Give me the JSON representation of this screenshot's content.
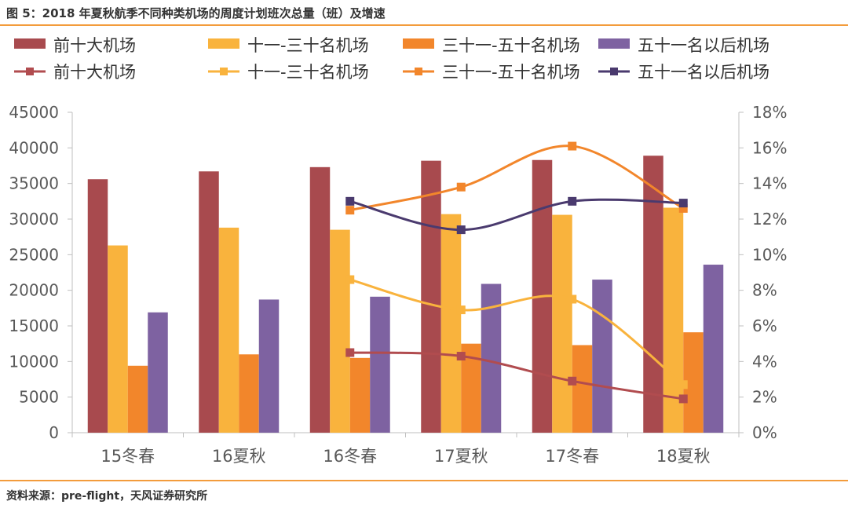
{
  "figure": {
    "title": "图 5：2018 年夏秋航季不同种类机场的周度计划班次总量（班）及增速",
    "source": "资料来源：pre-flight，天风证券研究所"
  },
  "colors": {
    "accent": "#F39C3C",
    "series": [
      "#A84A4E",
      "#F9B33D",
      "#F2862B",
      "#7E62A1"
    ],
    "lines": [
      "#B14C4F",
      "#F9B33D",
      "#F2862B",
      "#4A3A6E"
    ]
  },
  "chart_data": {
    "type": "bar",
    "title": "",
    "categories": [
      "15冬春",
      "16夏秋",
      "16冬春",
      "17夏秋",
      "17冬春",
      "18夏秋"
    ],
    "ylim": [
      0,
      45000
    ],
    "y_ticks": [
      "0",
      "5000",
      "10000",
      "15000",
      "20000",
      "25000",
      "30000",
      "35000",
      "40000",
      "45000"
    ],
    "y2lim": [
      0,
      0.18
    ],
    "y2_ticks": [
      "0%",
      "2%",
      "4%",
      "6%",
      "8%",
      "10%",
      "12%",
      "14%",
      "16%",
      "18%"
    ],
    "legend_position": "top",
    "series": [
      {
        "name": "前十大机场",
        "type": "bar",
        "axis": "left",
        "values": [
          35600,
          36700,
          37300,
          38200,
          38300,
          38900
        ]
      },
      {
        "name": "十一-三十名机场",
        "type": "bar",
        "axis": "left",
        "values": [
          26300,
          28800,
          28500,
          30700,
          30600,
          31600
        ]
      },
      {
        "name": "三十一-五十名机场",
        "type": "bar",
        "axis": "left",
        "values": [
          9400,
          11000,
          10500,
          12500,
          12300,
          14100
        ]
      },
      {
        "name": "五十一名以后机场",
        "type": "bar",
        "axis": "left",
        "values": [
          16900,
          18700,
          19100,
          20900,
          21500,
          23600
        ]
      },
      {
        "name": "前十大机场",
        "type": "line",
        "axis": "right",
        "values": [
          null,
          null,
          0.045,
          0.043,
          0.029,
          0.019
        ]
      },
      {
        "name": "十一-三十名机场",
        "type": "line",
        "axis": "right",
        "values": [
          null,
          null,
          0.086,
          0.069,
          0.075,
          0.027
        ]
      },
      {
        "name": "三十一-五十名机场",
        "type": "line",
        "axis": "right",
        "values": [
          null,
          null,
          0.125,
          0.138,
          0.161,
          0.126
        ]
      },
      {
        "name": "五十一名以后机场",
        "type": "line",
        "axis": "right",
        "values": [
          null,
          null,
          0.13,
          0.114,
          0.13,
          0.129
        ]
      }
    ]
  }
}
